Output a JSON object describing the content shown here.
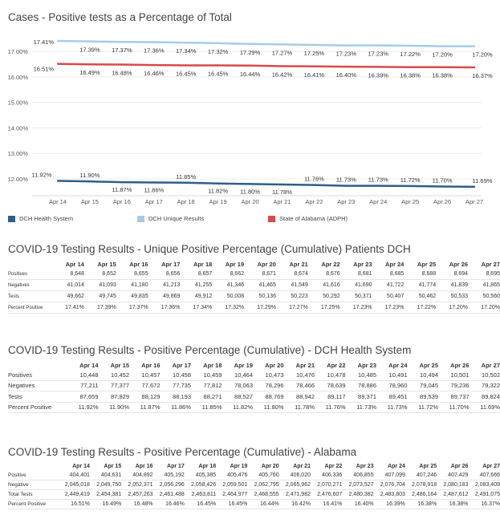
{
  "chart_data": {
    "type": "line",
    "title": "Cases - Positive tests as a Percentage of Total",
    "categories": [
      "Apr 14",
      "Apr 15",
      "Apr 16",
      "Apr 17",
      "Apr 18",
      "Apr 19",
      "Apr 20",
      "Apr 21",
      "Apr 22",
      "Apr 23",
      "Apr 24",
      "Apr 25",
      "Apr 26",
      "Apr 27"
    ],
    "yticks": [
      "17.00%",
      "16.00%",
      "15.00%",
      "14.00%",
      "13.00%",
      "12.00%"
    ],
    "ylim": [
      11.7,
      17.6
    ],
    "grid": true,
    "legend_position": "bottom",
    "series": [
      {
        "name": "DCH Unique Results",
        "color": "#a7cbe6",
        "values": [
          17.41,
          17.39,
          17.37,
          17.36,
          17.34,
          17.32,
          17.29,
          17.27,
          17.25,
          17.23,
          17.23,
          17.22,
          17.2,
          17.2
        ],
        "labels": [
          "17.41%",
          "17.39%",
          "17.37%",
          "17.36%",
          "17.34%",
          "17.32%",
          "17.29%",
          "17.27%",
          "17.25%",
          "17.23%",
          "17.23%",
          "17.22%",
          "17.20%",
          "17.20%"
        ]
      },
      {
        "name": "State of Alabama (ADPH)",
        "color": "#d9494c",
        "values": [
          16.51,
          16.49,
          16.48,
          16.46,
          16.45,
          16.45,
          16.44,
          16.42,
          16.41,
          16.4,
          16.39,
          16.38,
          16.38,
          16.37
        ],
        "labels": [
          "16.51%",
          "16.49%",
          "16.48%",
          "16.46%",
          "16.45%",
          "16.45%",
          "16.44%",
          "16.42%",
          "16.41%",
          "16.40%",
          "16.39%",
          "16.38%",
          "16.38%",
          "16.37%"
        ]
      },
      {
        "name": "DCH Health System",
        "color": "#2e5f8a",
        "values": [
          11.92,
          11.9,
          11.87,
          11.86,
          11.85,
          11.82,
          11.8,
          11.78,
          11.76,
          11.73,
          11.73,
          11.72,
          11.7,
          11.69
        ],
        "labels": [
          "11.92%",
          "11.90%",
          "11.87%",
          "11.86%",
          "11.85%",
          "11.82%",
          "11.80%",
          "11.78%",
          "11.76%",
          "11.73%",
          "11.73%",
          "11.72%",
          "11.70%",
          "11.69%"
        ]
      }
    ],
    "legend": [
      {
        "name": "DCH Health System",
        "color": "#2e5f8a"
      },
      {
        "name": "DCH Unique Results",
        "color": "#a7cbe6"
      },
      {
        "name": "State of Alabama (ADPH)",
        "color": "#d9494c"
      }
    ]
  },
  "tables": [
    {
      "id": "t1",
      "title": "COVID-19 Testing Results - Unique Positive Percentage (Cumulative) Patients DCH",
      "headers": [
        "Apr 14",
        "Apr 15",
        "Apr 16",
        "Apr 17",
        "Apr 18",
        "Apr 19",
        "Apr 20",
        "Apr 21",
        "Apr 22",
        "Apr 23",
        "Apr 24",
        "Apr 25",
        "Apr 26",
        "Apr 27"
      ],
      "rows": [
        {
          "label": "Positives",
          "values": [
            "8,648",
            "8,652",
            "8,655",
            "8,656",
            "8,657",
            "8,662",
            "8,671",
            "8,674",
            "8,676",
            "8,681",
            "8,685",
            "8,688",
            "8,694",
            "8,695"
          ]
        },
        {
          "label": "Negatives",
          "values": [
            "41,014",
            "41,093",
            "41,180",
            "41,213",
            "41,255",
            "41,346",
            "41,465",
            "41,549",
            "41,616",
            "41,690",
            "41,722",
            "41,774",
            "41,839",
            "41,865"
          ]
        },
        {
          "label": "Tests",
          "values": [
            "49,662",
            "49,745",
            "49,835",
            "49,869",
            "49,912",
            "50,008",
            "50,136",
            "50,223",
            "50,292",
            "50,371",
            "50,407",
            "50,462",
            "50,533",
            "50,560"
          ]
        },
        {
          "label": "Percent Positive",
          "values": [
            "17.41%",
            "17.39%",
            "17.37%",
            "17.36%",
            "17.34%",
            "17.32%",
            "17.29%",
            "17.27%",
            "17.25%",
            "17.23%",
            "17.23%",
            "17.22%",
            "17.20%",
            "17.20%"
          ]
        }
      ]
    },
    {
      "id": "t2",
      "title": "COVID-19 Testing Results - Positive Percentage (Cumulative) - DCH Health System",
      "headers": [
        "Apr 14",
        "Apr 15",
        "Apr 16",
        "Apr 17",
        "Apr 18",
        "Apr 19",
        "Apr 20",
        "Apr 21",
        "Apr 22",
        "Apr 23",
        "Apr 24",
        "Apr 25",
        "Apr 26",
        "Apr 27"
      ],
      "rows": [
        {
          "label": "Positives",
          "values": [
            "10,448",
            "10,452",
            "10,457",
            "10,458",
            "10,459",
            "10,464",
            "10,473",
            "10,476",
            "10,478",
            "10,485",
            "10,491",
            "10,494",
            "10,501",
            "10,502"
          ]
        },
        {
          "label": "Negatives",
          "values": [
            "77,211",
            "77,377",
            "77,672",
            "77,735",
            "77,812",
            "78,063",
            "78,296",
            "78,466",
            "78,639",
            "78,886",
            "78,960",
            "79,045",
            "79,236",
            "79,322"
          ]
        },
        {
          "label": "Tests",
          "values": [
            "87,659",
            "87,829",
            "88,129",
            "88,193",
            "88,271",
            "88,527",
            "88,769",
            "88,942",
            "89,117",
            "89,371",
            "89,451",
            "89,539",
            "89,737",
            "89,824"
          ]
        },
        {
          "label": "Percent Positive",
          "values": [
            "11.92%",
            "11.90%",
            "11.87%",
            "11.86%",
            "11.85%",
            "11.82%",
            "11.80%",
            "11.78%",
            "11.76%",
            "11.73%",
            "11.73%",
            "11.72%",
            "11.70%",
            "11.69%"
          ]
        }
      ]
    },
    {
      "id": "t3",
      "title": "COVID-19 Testing Results - Positive Percentage (Cumulative) - Alabama",
      "headers": [
        "Apr 14",
        "Apr 15",
        "Apr 16",
        "Apr 17",
        "Apr 18",
        "Apr 19",
        "Apr 20",
        "Apr 21",
        "Apr 22",
        "Apr 23",
        "Apr 24",
        "Apr 25",
        "Apr 26",
        "Apr 27"
      ],
      "rows": [
        {
          "label": "Positive",
          "values": [
            "404,401",
            "404,631",
            "404,892",
            "405,192",
            "405,385",
            "405,476",
            "405,760",
            "406,020",
            "406,336",
            "406,855",
            "407,099",
            "407,246",
            "407,429",
            "407,666"
          ]
        },
        {
          "label": "Negative",
          "values": [
            "2,045,018",
            "2,049,750",
            "2,052,371",
            "2,056,296",
            "2,058,426",
            "2,059,501",
            "2,062,795",
            "2,065,962",
            "2,070,271",
            "2,073,527",
            "2,076,704",
            "2,078,918",
            "2,080,183",
            "2,083,409"
          ]
        },
        {
          "label": "Total Tests",
          "values": [
            "2,449,419",
            "2,454,381",
            "2,457,263",
            "2,461,488",
            "2,463,811",
            "2,464,977",
            "2,468,555",
            "2,471,982",
            "2,476,607",
            "2,480,382",
            "2,483,803",
            "2,486,164",
            "2,487,612",
            "2,491,075"
          ]
        },
        {
          "label": "Percent Positive",
          "values": [
            "16.51%",
            "16.49%",
            "16.48%",
            "16.46%",
            "16.45%",
            "16.45%",
            "16.44%",
            "16.42%",
            "16.41%",
            "16.40%",
            "16.39%",
            "16.38%",
            "16.38%",
            "16.37%"
          ]
        }
      ]
    }
  ]
}
